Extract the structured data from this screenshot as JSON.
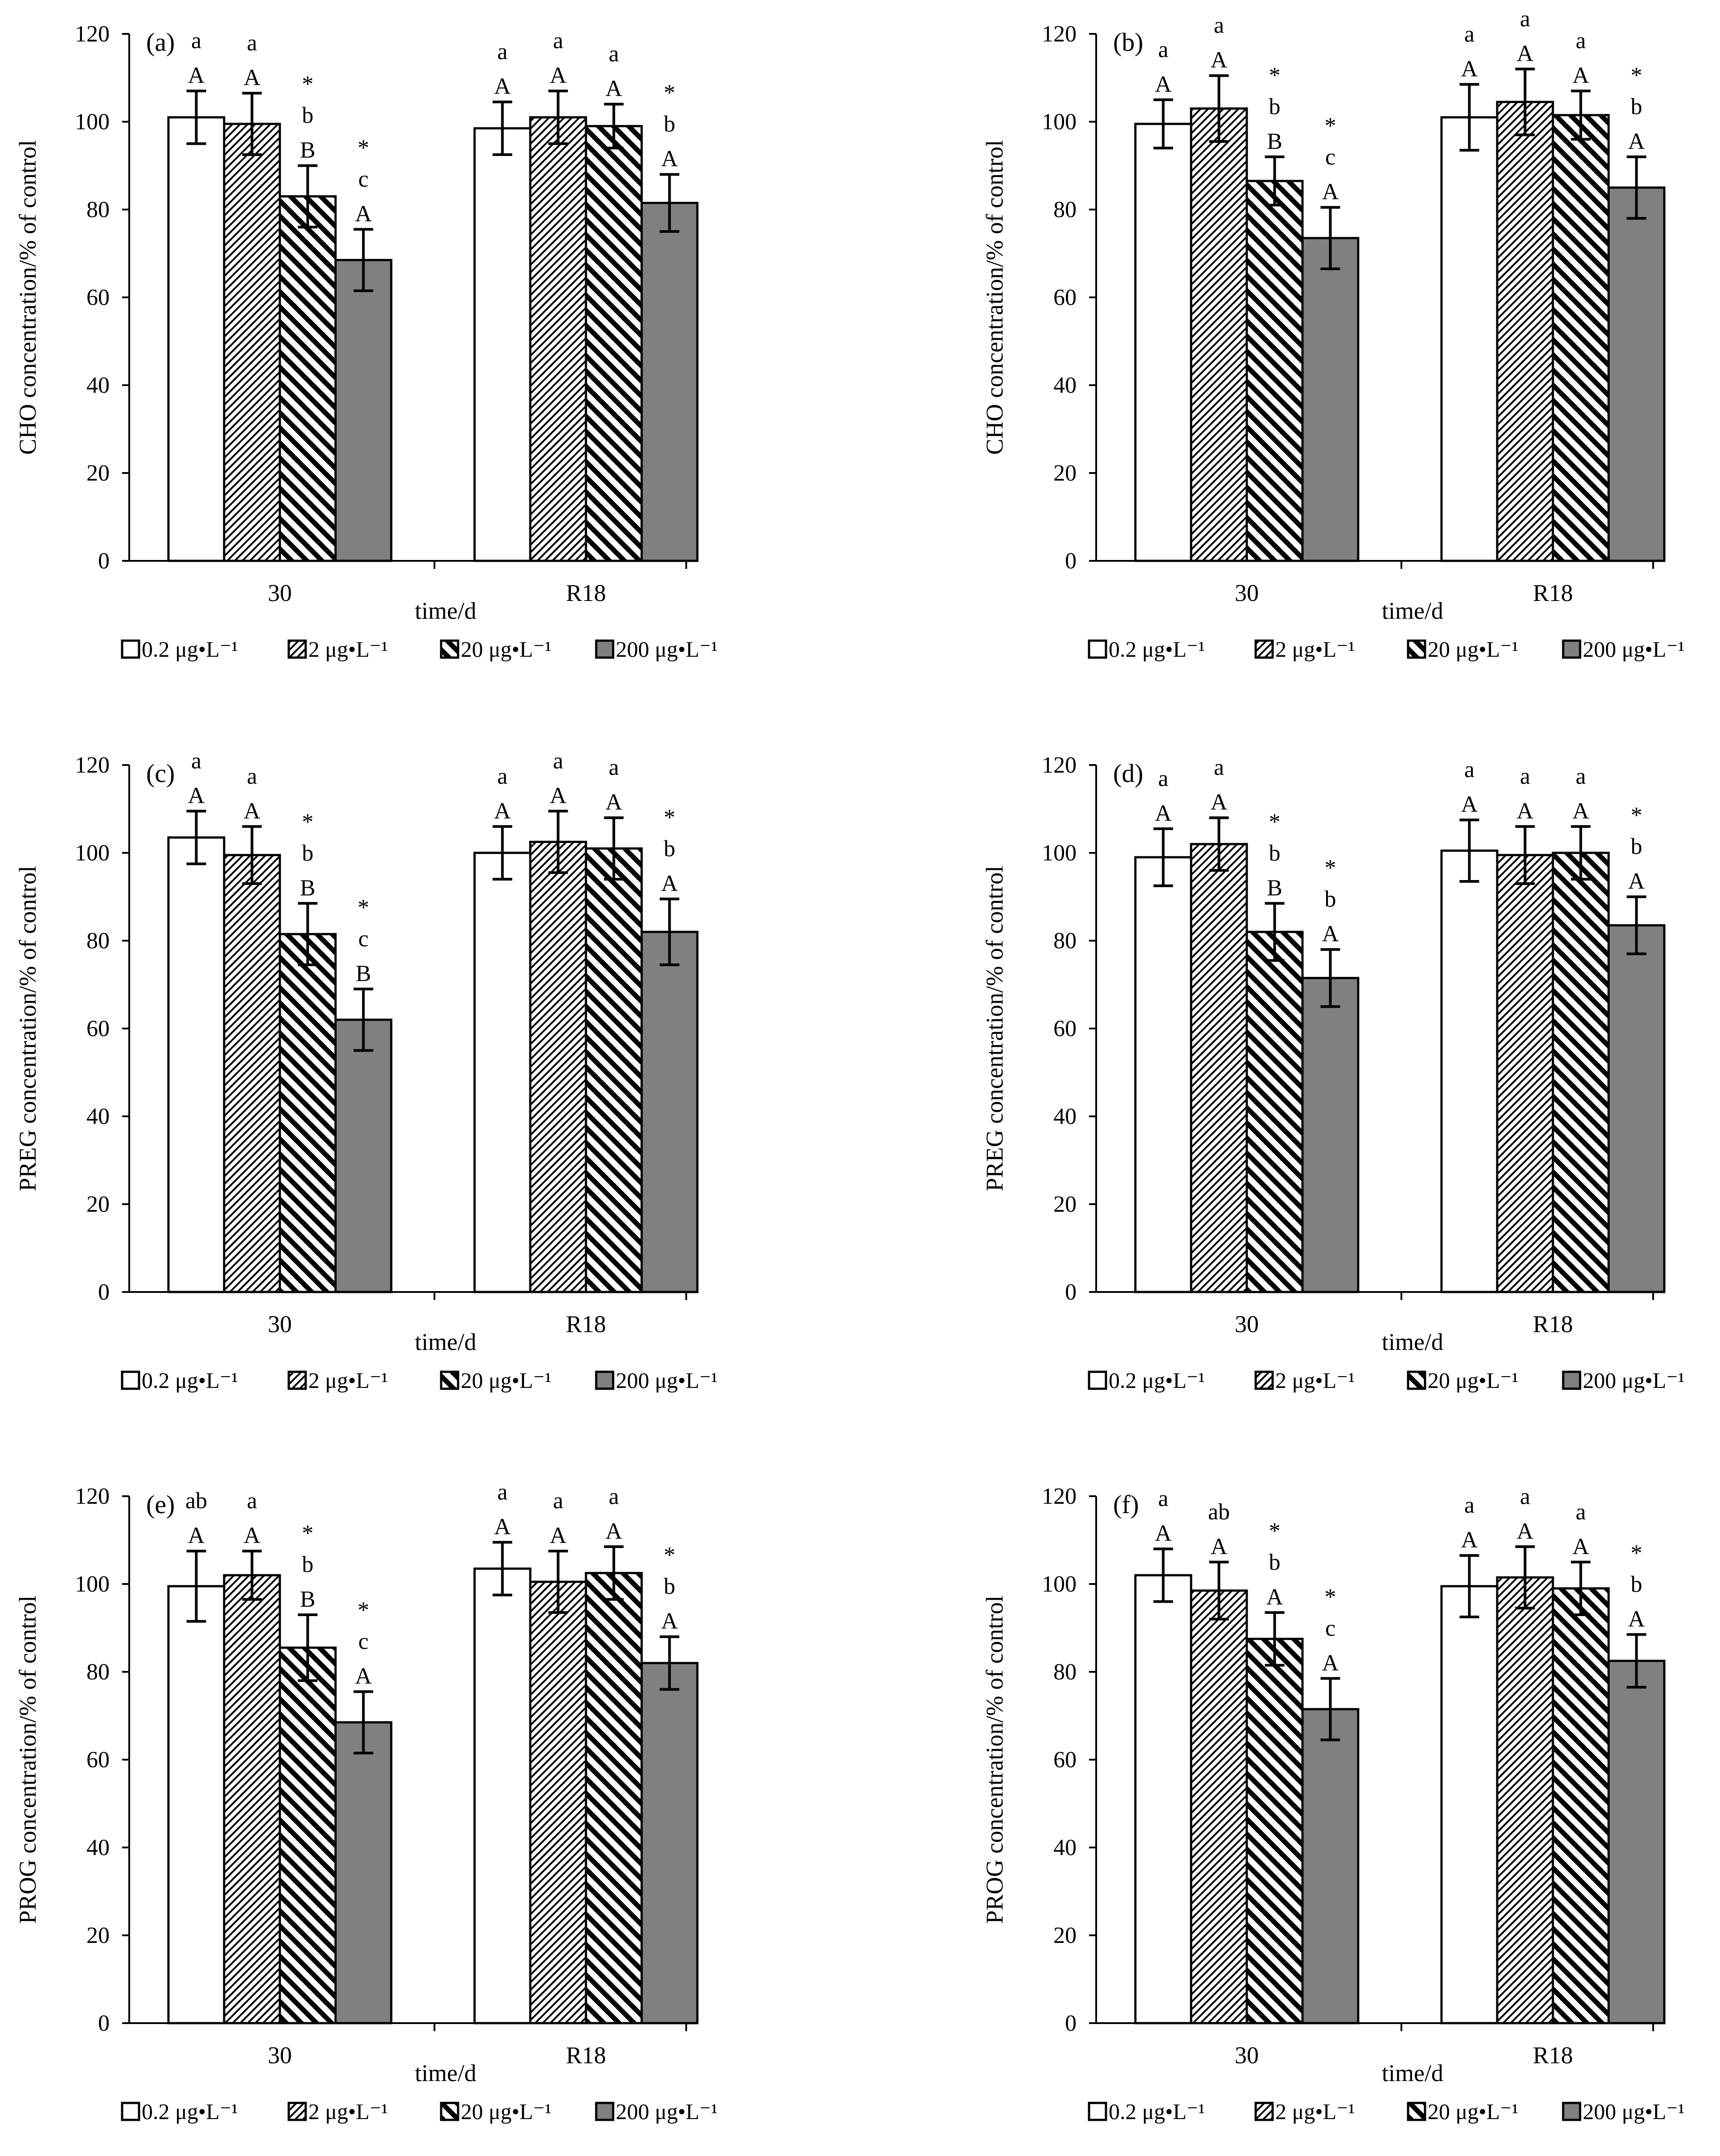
{
  "legend": {
    "items": [
      {
        "label": "0.2 μg•L⁻¹",
        "pattern": "none",
        "fill": "#ffffff"
      },
      {
        "label": "2 μg•L⁻¹",
        "pattern": "fine-diag",
        "fill": "#ffffff"
      },
      {
        "label": "20 μg•L⁻¹",
        "pattern": "bold-diag",
        "fill": "#ffffff"
      },
      {
        "label": "200 μg•L⁻¹",
        "pattern": "none",
        "fill": "#808080"
      }
    ]
  },
  "chart_data": [
    {
      "panel": "(a)",
      "type": "bar",
      "ylabel": "CHO concentration/% of control",
      "xlabel": "time/d",
      "ylim": [
        0,
        120
      ],
      "yticks": [
        0,
        20,
        40,
        60,
        80,
        100,
        120
      ],
      "categories": [
        "30",
        "R18"
      ],
      "series": [
        {
          "name": "0.2 μg•L⁻¹",
          "values": [
            101,
            98.5
          ],
          "errors": [
            6,
            6
          ],
          "labels": [
            [
              "a",
              "A"
            ],
            [
              "a",
              "A"
            ]
          ]
        },
        {
          "name": "2 μg•L⁻¹",
          "values": [
            99.5,
            101
          ],
          "errors": [
            7,
            6
          ],
          "labels": [
            [
              "a",
              "A"
            ],
            [
              "a",
              "A"
            ]
          ]
        },
        {
          "name": "20 μg•L⁻¹",
          "values": [
            83,
            99
          ],
          "errors": [
            7,
            5
          ],
          "labels": [
            [
              "*",
              "b",
              "B"
            ],
            [
              "a",
              "A"
            ]
          ]
        },
        {
          "name": "200 μg•L⁻¹",
          "values": [
            68.5,
            81.5
          ],
          "errors": [
            7,
            6.5
          ],
          "labels": [
            [
              "*",
              "c",
              "A"
            ],
            [
              "*",
              "b",
              "A"
            ]
          ]
        }
      ]
    },
    {
      "panel": "(b)",
      "type": "bar",
      "ylabel": "CHO concentration/% of control",
      "xlabel": "time/d",
      "ylim": [
        0,
        120
      ],
      "yticks": [
        0,
        20,
        40,
        60,
        80,
        100,
        120
      ],
      "categories": [
        "30",
        "R18"
      ],
      "series": [
        {
          "name": "0.2 μg•L⁻¹",
          "values": [
            99.5,
            101
          ],
          "errors": [
            5.5,
            7.5
          ],
          "labels": [
            [
              "a",
              "A"
            ],
            [
              "a",
              "A"
            ]
          ]
        },
        {
          "name": "2 μg•L⁻¹",
          "values": [
            103,
            104.5
          ],
          "errors": [
            7.5,
            7.5
          ],
          "labels": [
            [
              "a",
              "A"
            ],
            [
              "a",
              "A"
            ]
          ]
        },
        {
          "name": "20 μg•L⁻¹",
          "values": [
            86.5,
            101.5
          ],
          "errors": [
            5.5,
            5.5
          ],
          "labels": [
            [
              "*",
              "b",
              "B"
            ],
            [
              "a",
              "A"
            ]
          ]
        },
        {
          "name": "200 μg•L⁻¹",
          "values": [
            73.5,
            85
          ],
          "errors": [
            7,
            7
          ],
          "labels": [
            [
              "*",
              "c",
              "A"
            ],
            [
              "*",
              "b",
              "A"
            ]
          ]
        }
      ]
    },
    {
      "panel": "(c)",
      "type": "bar",
      "ylabel": "PREG concentration/% of control",
      "xlabel": "time/d",
      "ylim": [
        0,
        120
      ],
      "yticks": [
        0,
        20,
        40,
        60,
        80,
        100,
        120
      ],
      "categories": [
        "30",
        "R18"
      ],
      "series": [
        {
          "name": "0.2 μg•L⁻¹",
          "values": [
            103.5,
            100
          ],
          "errors": [
            6,
            6
          ],
          "labels": [
            [
              "a",
              "A"
            ],
            [
              "a",
              "A"
            ]
          ]
        },
        {
          "name": "2 μg•L⁻¹",
          "values": [
            99.5,
            102.5
          ],
          "errors": [
            6.5,
            7
          ],
          "labels": [
            [
              "a",
              "A"
            ],
            [
              "a",
              "A"
            ]
          ]
        },
        {
          "name": "20 μg•L⁻¹",
          "values": [
            81.5,
            101
          ],
          "errors": [
            7,
            7
          ],
          "labels": [
            [
              "*",
              "b",
              "B"
            ],
            [
              "a",
              "A"
            ]
          ]
        },
        {
          "name": "200 μg•L⁻¹",
          "values": [
            62,
            82
          ],
          "errors": [
            7,
            7.5
          ],
          "labels": [
            [
              "*",
              "c",
              "B"
            ],
            [
              "*",
              "b",
              "A"
            ]
          ]
        }
      ]
    },
    {
      "panel": "(d)",
      "type": "bar",
      "ylabel": "PREG concentration/% of control",
      "xlabel": "time/d",
      "ylim": [
        0,
        120
      ],
      "yticks": [
        0,
        20,
        40,
        60,
        80,
        100,
        120
      ],
      "categories": [
        "30",
        "R18"
      ],
      "series": [
        {
          "name": "0.2 μg•L⁻¹",
          "values": [
            99,
            100.5
          ],
          "errors": [
            6.5,
            7
          ],
          "labels": [
            [
              "a",
              "A"
            ],
            [
              "a",
              "A"
            ]
          ]
        },
        {
          "name": "2 μg•L⁻¹",
          "values": [
            102,
            99.5
          ],
          "errors": [
            6,
            6.5
          ],
          "labels": [
            [
              "a",
              "A"
            ],
            [
              "a",
              "A"
            ]
          ]
        },
        {
          "name": "20 μg•L⁻¹",
          "values": [
            82,
            100
          ],
          "errors": [
            6.5,
            6
          ],
          "labels": [
            [
              "*",
              "b",
              "B"
            ],
            [
              "a",
              "A"
            ]
          ]
        },
        {
          "name": "200 μg•L⁻¹",
          "values": [
            71.5,
            83.5
          ],
          "errors": [
            6.5,
            6.5
          ],
          "labels": [
            [
              "*",
              "b",
              "A"
            ],
            [
              "*",
              "b",
              "A"
            ]
          ]
        }
      ]
    },
    {
      "panel": "(e)",
      "type": "bar",
      "ylabel": "PROG concentration/% of control",
      "xlabel": "time/d",
      "ylim": [
        0,
        120
      ],
      "yticks": [
        0,
        20,
        40,
        60,
        80,
        100,
        120
      ],
      "categories": [
        "30",
        "R18"
      ],
      "series": [
        {
          "name": "0.2 μg•L⁻¹",
          "values": [
            99.5,
            103.5
          ],
          "errors": [
            8,
            6
          ],
          "labels": [
            [
              "ab",
              "A"
            ],
            [
              "a",
              "A"
            ]
          ]
        },
        {
          "name": "2 μg•L⁻¹",
          "values": [
            102,
            100.5
          ],
          "errors": [
            5.5,
            7
          ],
          "labels": [
            [
              "a",
              "A"
            ],
            [
              "a",
              "A"
            ]
          ]
        },
        {
          "name": "20 μg•L⁻¹",
          "values": [
            85.5,
            102.5
          ],
          "errors": [
            7.5,
            6
          ],
          "labels": [
            [
              "*",
              "b",
              "B"
            ],
            [
              "a",
              "A"
            ]
          ]
        },
        {
          "name": "200 μg•L⁻¹",
          "values": [
            68.5,
            82
          ],
          "errors": [
            7,
            6
          ],
          "labels": [
            [
              "*",
              "c",
              "A"
            ],
            [
              "*",
              "b",
              "A"
            ]
          ]
        }
      ]
    },
    {
      "panel": "(f)",
      "type": "bar",
      "ylabel": "PROG concentration/% of control",
      "xlabel": "time/d",
      "ylim": [
        0,
        120
      ],
      "yticks": [
        0,
        20,
        40,
        60,
        80,
        100,
        120
      ],
      "categories": [
        "30",
        "R18"
      ],
      "series": [
        {
          "name": "0.2 μg•L⁻¹",
          "values": [
            102,
            99.5
          ],
          "errors": [
            6,
            7
          ],
          "labels": [
            [
              "a",
              "A"
            ],
            [
              "a",
              "A"
            ]
          ]
        },
        {
          "name": "2 μg•L⁻¹",
          "values": [
            98.5,
            101.5
          ],
          "errors": [
            6.5,
            7
          ],
          "labels": [
            [
              "ab",
              "A"
            ],
            [
              "a",
              "A"
            ]
          ]
        },
        {
          "name": "20 μg•L⁻¹",
          "values": [
            87.5,
            99
          ],
          "errors": [
            6,
            6
          ],
          "labels": [
            [
              "*",
              "b",
              "A"
            ],
            [
              "a",
              "A"
            ]
          ]
        },
        {
          "name": "200 μg•L⁻¹",
          "values": [
            71.5,
            82.5
          ],
          "errors": [
            7,
            6
          ],
          "labels": [
            [
              "*",
              "c",
              "A"
            ],
            [
              "*",
              "b",
              "A"
            ]
          ]
        }
      ]
    }
  ]
}
